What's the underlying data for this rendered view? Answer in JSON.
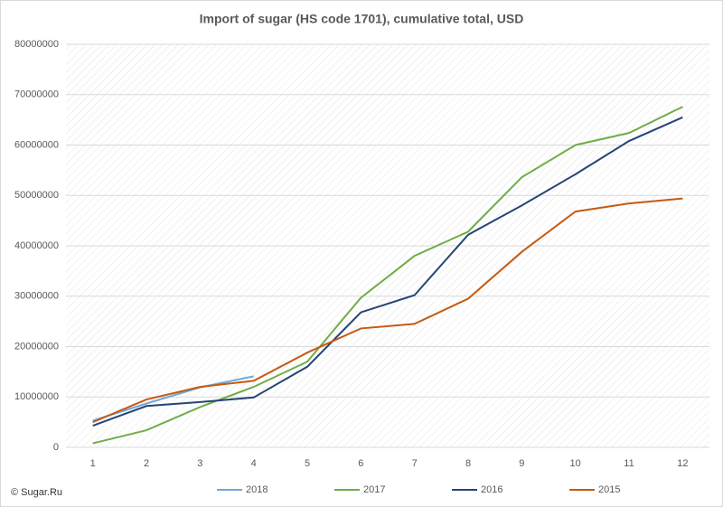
{
  "chart_data": {
    "type": "line",
    "title": "Import of sugar (HS code 1701), cumulative total, USD",
    "source": "© Sugar.Ru",
    "categories": [
      "1",
      "2",
      "3",
      "4",
      "5",
      "6",
      "7",
      "8",
      "9",
      "10",
      "11",
      "12"
    ],
    "series": [
      {
        "name": "2018",
        "color": "#6fa8dc",
        "values": [
          5300000,
          8700000,
          11900000,
          14100000,
          null,
          null,
          null,
          null,
          null,
          null,
          null,
          null
        ]
      },
      {
        "name": "2017",
        "color": "#70ad47",
        "values": [
          800000,
          3400000,
          8000000,
          12000000,
          17000000,
          29700000,
          38000000,
          42800000,
          53600000,
          60000000,
          62400000,
          67600000
        ]
      },
      {
        "name": "2016",
        "color": "#264478",
        "values": [
          4300000,
          8200000,
          9000000,
          9900000,
          16000000,
          26800000,
          30200000,
          42200000,
          48000000,
          54200000,
          60800000,
          65500000
        ]
      },
      {
        "name": "2015",
        "color": "#c55a11",
        "values": [
          5000000,
          9500000,
          12000000,
          13200000,
          18800000,
          23600000,
          24500000,
          29500000,
          38800000,
          46800000,
          48400000,
          49400000
        ]
      }
    ],
    "ylim": [
      0,
      80000000
    ],
    "yticks": [
      0,
      10000000,
      20000000,
      30000000,
      40000000,
      50000000,
      60000000,
      70000000,
      80000000
    ],
    "grid": true,
    "legend": "bottom"
  }
}
